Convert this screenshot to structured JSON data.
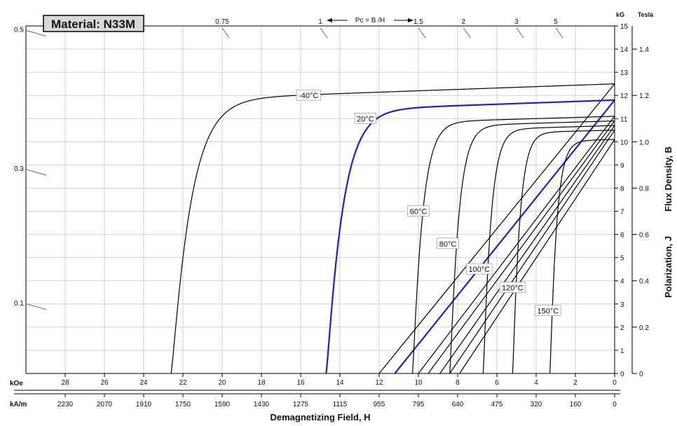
{
  "chart_data": {
    "type": "line",
    "title": "Material: N33M",
    "xlabel": "Demagnetizing Field, H",
    "ylabel_j": "Polarization,   J",
    "ylabel_b": "Flux Density,   B",
    "x_unit_koe": "kOe",
    "x_unit_kam": "kA/m",
    "y_unit_kg": "kG",
    "y_unit_tesla": "Tesla",
    "pc_label": "Pc = B /H",
    "xlim": [
      30,
      0
    ],
    "ylim": [
      0,
      15
    ],
    "grid": true,
    "x_ticks_koe": [
      28,
      26,
      24,
      22,
      20,
      18,
      16,
      14,
      12,
      10,
      8,
      6,
      4,
      2,
      0
    ],
    "x_ticks_kam": [
      {
        "value": 28,
        "label": "2230"
      },
      {
        "value": 26,
        "label": "2070"
      },
      {
        "value": 24,
        "label": "1910"
      },
      {
        "value": 22,
        "label": "1750"
      },
      {
        "value": 20,
        "label": "1590"
      },
      {
        "value": 18,
        "label": "1430"
      },
      {
        "value": 16,
        "label": "1275"
      },
      {
        "value": 14,
        "label": "1115"
      },
      {
        "value": 12,
        "label": "955"
      },
      {
        "value": 10,
        "label": "795"
      },
      {
        "value": 8,
        "label": "640"
      },
      {
        "value": 6,
        "label": "475"
      },
      {
        "value": 4,
        "label": "320"
      },
      {
        "value": 2,
        "label": "160"
      },
      {
        "value": 0,
        "label": "0"
      }
    ],
    "y_ticks_kg": [
      0,
      1,
      2,
      3,
      4,
      5,
      6,
      7,
      8,
      9,
      10,
      11,
      12,
      13,
      14,
      15
    ],
    "y_ticks_tesla": [
      {
        "value": 0,
        "label": "0"
      },
      {
        "value": 2,
        "label": "0.2"
      },
      {
        "value": 4,
        "label": "0.4"
      },
      {
        "value": 6,
        "label": "0.6"
      },
      {
        "value": 8,
        "label": "0.8"
      },
      {
        "value": 10,
        "label": "1.0"
      },
      {
        "value": 12,
        "label": "1.2"
      },
      {
        "value": 14,
        "label": "1.4"
      }
    ],
    "pc_ticks": [
      {
        "label": "0.1",
        "side": "left",
        "y": 3.0
      },
      {
        "label": "0.3",
        "side": "left",
        "y": 8.8
      },
      {
        "label": "0.5",
        "side": "left",
        "y": 14.8
      },
      {
        "label": "0.75",
        "side": "top",
        "x": 20.0
      },
      {
        "label": "1",
        "side": "top",
        "x": 15.0
      },
      {
        "label": "1.5",
        "side": "top",
        "x": 10.0
      },
      {
        "label": "2",
        "side": "top",
        "x": 7.7
      },
      {
        "label": "3",
        "side": "top",
        "x": 5.0
      },
      {
        "label": "5",
        "side": "top",
        "x": 3.0
      }
    ],
    "series": [
      {
        "name": "-40°C",
        "color": "#000000",
        "j": {
          "br": 12.5,
          "hcj": 22.6,
          "slope": 0.03,
          "knee": 0.9
        },
        "b": {
          "br": 12.5,
          "hc": 12.0
        },
        "label_pos": {
          "x": 15.6,
          "y": 12.0
        }
      },
      {
        "name": "20°C",
        "color": "#1f1fd0",
        "j": {
          "br": 11.8,
          "hcj": 14.7,
          "slope": 0.03,
          "knee": 0.75
        },
        "b": {
          "br": 11.8,
          "hc": 11.2
        },
        "label_pos": {
          "x": 12.7,
          "y": 11.0
        }
      },
      {
        "name": "60°C",
        "color": "#000000",
        "j": {
          "br": 11.1,
          "hcj": 10.3,
          "slope": 0.025,
          "knee": 0.45
        },
        "b": {
          "br": 11.1,
          "hc": 10.0
        },
        "label_pos": {
          "x": 10.0,
          "y": 7.0
        }
      },
      {
        "name": "80°C",
        "color": "#000000",
        "j": {
          "br": 10.9,
          "hcj": 8.4,
          "slope": 0.025,
          "knee": 0.4
        },
        "b": {
          "br": 10.9,
          "hc": 9.5
        },
        "label_pos": {
          "x": 8.5,
          "y": 5.6
        }
      },
      {
        "name": "100°C",
        "color": "#000000",
        "j": {
          "br": 10.7,
          "hcj": 6.7,
          "slope": 0.025,
          "knee": 0.35
        },
        "b": {
          "br": 10.7,
          "hc": 8.9
        },
        "label_pos": {
          "x": 6.9,
          "y": 4.5
        }
      },
      {
        "name": "120°C",
        "color": "#000000",
        "j": {
          "br": 10.5,
          "hcj": 5.2,
          "slope": 0.02,
          "knee": 0.32
        },
        "b": {
          "br": 10.5,
          "hc": 8.4
        },
        "label_pos": {
          "x": 5.2,
          "y": 3.7
        }
      },
      {
        "name": "150°C",
        "color": "#000000",
        "j": {
          "br": 10.1,
          "hcj": 3.3,
          "slope": 0.02,
          "knee": 0.3
        },
        "b": {
          "br": 10.1,
          "hc": 7.9
        },
        "label_pos": {
          "x": 3.4,
          "y": 2.7
        }
      }
    ]
  }
}
